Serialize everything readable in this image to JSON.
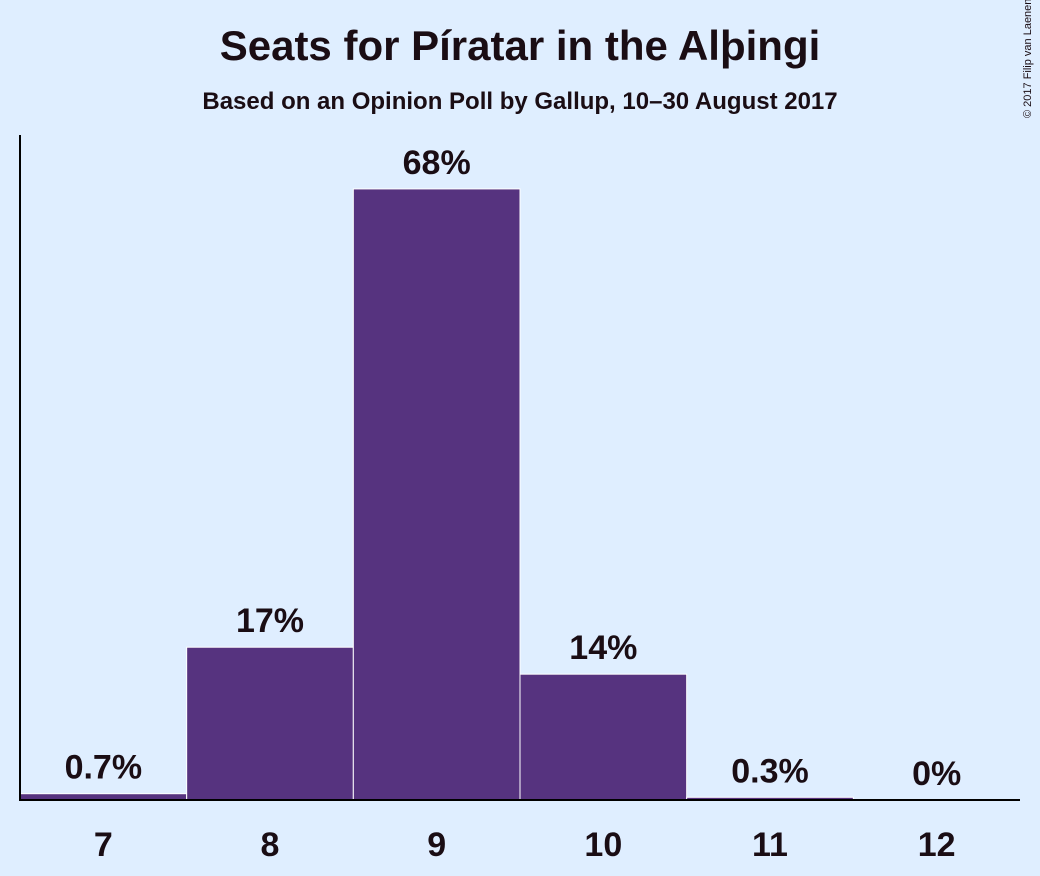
{
  "copyright": "© 2017 Filip van Laenen",
  "colors": {
    "background": "#dfeeff",
    "bar": "#56337f",
    "text": "#1a0d14"
  },
  "chart_data": {
    "type": "bar",
    "title": "Seats for Píratar in the Alþingi",
    "subtitle": "Based on an Opinion Poll by Gallup, 10–30 August 2017",
    "xlabel": "",
    "ylabel": "",
    "categories": [
      "7",
      "8",
      "9",
      "10",
      "11",
      "12"
    ],
    "values": [
      0.7,
      17,
      68,
      14,
      0.3,
      0
    ],
    "value_labels": [
      "0.7%",
      "17%",
      "68%",
      "14%",
      "0.3%",
      "0%"
    ],
    "ylim": [
      0,
      74
    ],
    "grid": false
  }
}
